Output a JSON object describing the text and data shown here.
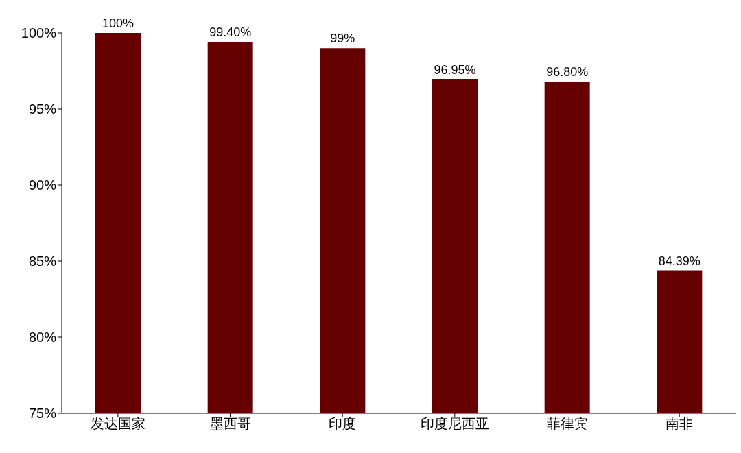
{
  "chart_data": {
    "type": "bar",
    "categories": [
      "发达国家",
      "墨西哥",
      "印度",
      "印度尼西亚",
      "菲律宾",
      "南非"
    ],
    "values": [
      100,
      99.4,
      99,
      96.95,
      96.8,
      84.39
    ],
    "value_labels": [
      "100%",
      "99.40%",
      "99%",
      "96.95%",
      "96.80%",
      "84.39%"
    ],
    "color": "#660000",
    "ylim": [
      75,
      100
    ],
    "yticks": [
      {
        "value": 75,
        "label": "75%"
      },
      {
        "value": 80,
        "label": "80%"
      },
      {
        "value": 85,
        "label": "85%"
      },
      {
        "value": 90,
        "label": "90%"
      },
      {
        "value": 95,
        "label": "95%"
      },
      {
        "value": 100,
        "label": "100%"
      }
    ],
    "grid": false,
    "legend": false
  }
}
